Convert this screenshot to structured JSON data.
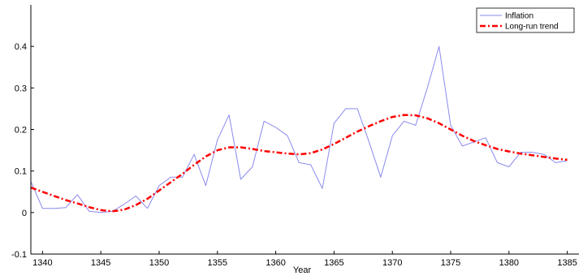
{
  "chart_data": {
    "type": "line",
    "title": "",
    "xlabel": "Year",
    "ylabel": "",
    "xlim": [
      1339,
      1386
    ],
    "ylim": [
      -0.1,
      0.5
    ],
    "xticks": [
      1340,
      1345,
      1350,
      1355,
      1360,
      1365,
      1370,
      1375,
      1380,
      1385
    ],
    "yticks": [
      -0.1,
      0,
      0.1,
      0.2,
      0.3,
      0.4
    ],
    "ytick_labels": [
      "-0.1",
      "0",
      "0.1",
      "0.2",
      "0.3",
      "0.4"
    ],
    "grid": false,
    "legend_position": "top-right",
    "series": [
      {
        "name": "Inflation",
        "color": "#8a8aee",
        "style": "solid",
        "x": [
          1339,
          1340,
          1341,
          1342,
          1343,
          1344,
          1345,
          1346,
          1347,
          1348,
          1349,
          1350,
          1351,
          1352,
          1353,
          1354,
          1355,
          1356,
          1357,
          1358,
          1359,
          1360,
          1361,
          1362,
          1363,
          1364,
          1365,
          1366,
          1367,
          1368,
          1369,
          1370,
          1371,
          1372,
          1373,
          1374,
          1375,
          1376,
          1377,
          1378,
          1379,
          1380,
          1381,
          1382,
          1383,
          1384,
          1385
        ],
        "values": [
          0.075,
          0.01,
          0.01,
          0.012,
          0.043,
          0.003,
          0.0,
          0.003,
          0.02,
          0.04,
          0.01,
          0.065,
          0.085,
          0.085,
          0.14,
          0.065,
          0.175,
          0.235,
          0.08,
          0.11,
          0.22,
          0.205,
          0.185,
          0.12,
          0.115,
          0.058,
          0.215,
          0.25,
          0.25,
          0.17,
          0.085,
          0.185,
          0.22,
          0.21,
          0.3,
          0.4,
          0.21,
          0.16,
          0.17,
          0.18,
          0.12,
          0.11,
          0.145,
          0.145,
          0.14,
          0.12,
          0.125
        ]
      },
      {
        "name": "Long-run trend",
        "color": "#ff0000",
        "style": "dashdot",
        "x": [
          1339,
          1340,
          1341,
          1342,
          1343,
          1344,
          1345,
          1346,
          1347,
          1348,
          1349,
          1350,
          1351,
          1352,
          1353,
          1354,
          1355,
          1356,
          1357,
          1358,
          1359,
          1360,
          1361,
          1362,
          1363,
          1364,
          1365,
          1366,
          1367,
          1368,
          1369,
          1370,
          1371,
          1372,
          1373,
          1374,
          1375,
          1376,
          1377,
          1378,
          1379,
          1380,
          1381,
          1382,
          1383,
          1384,
          1385
        ],
        "values": [
          0.06,
          0.05,
          0.04,
          0.03,
          0.022,
          0.013,
          0.006,
          0.003,
          0.007,
          0.018,
          0.033,
          0.053,
          0.073,
          0.093,
          0.115,
          0.135,
          0.15,
          0.157,
          0.157,
          0.153,
          0.148,
          0.145,
          0.142,
          0.14,
          0.143,
          0.152,
          0.165,
          0.18,
          0.195,
          0.208,
          0.22,
          0.23,
          0.235,
          0.234,
          0.227,
          0.215,
          0.2,
          0.185,
          0.172,
          0.162,
          0.153,
          0.147,
          0.142,
          0.138,
          0.134,
          0.13,
          0.127
        ]
      }
    ]
  }
}
